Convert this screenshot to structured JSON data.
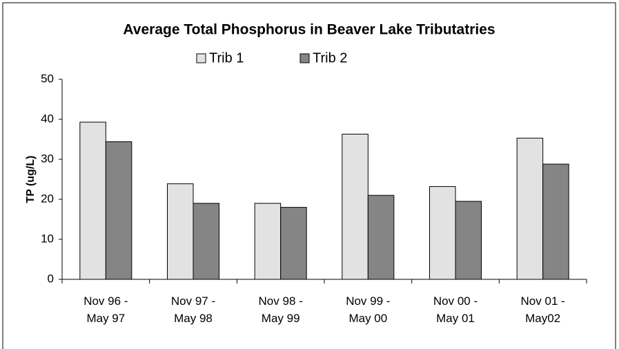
{
  "chart_data": {
    "type": "bar",
    "title": "Average Total Phosphorus in Beaver Lake Tributatries",
    "y_label": "TP (ug/L)",
    "categories": [
      "Nov 96 - May 97",
      "Nov 97 - May 98",
      "Nov 98 - May 99",
      "Nov 99 - May 00",
      "Nov 00 - May 01",
      "Nov 01 - May02"
    ],
    "series": [
      {
        "name": "Trib 1",
        "color": "#e2e2e2",
        "values": [
          39.3,
          23.9,
          19,
          36.3,
          23.2,
          35.3
        ]
      },
      {
        "name": "Trib 2",
        "color": "#858585",
        "values": [
          34.4,
          19,
          18,
          21,
          19.5,
          28.8
        ]
      }
    ],
    "ylim": [
      0,
      50
    ],
    "yticks": [
      0,
      10,
      20,
      30,
      40,
      50
    ],
    "grid": false,
    "legend": "top"
  }
}
